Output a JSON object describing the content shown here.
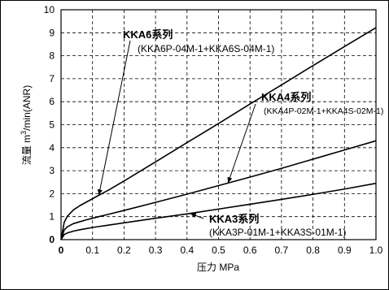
{
  "chart_data": {
    "type": "line",
    "title": "",
    "xlabel": "压力 MPa",
    "ylabel_prefix": "流量 m",
    "ylabel_sup": "3",
    "ylabel_suffix": "/min(ANR)",
    "xlim": [
      0,
      1.0
    ],
    "ylim": [
      0,
      10
    ],
    "grid": true,
    "x_ticks": [
      "0",
      "0.1",
      "0.2",
      "0.3",
      "0.4",
      "0.5",
      "0.6",
      "0.7",
      "0.8",
      "0.9",
      "1.0"
    ],
    "y_ticks": [
      "0",
      "1",
      "2",
      "3",
      "4",
      "5",
      "6",
      "7",
      "8",
      "9",
      "10"
    ],
    "series": [
      {
        "name": "KKA6",
        "x": [
          0,
          0.01,
          0.02,
          0.04,
          0.06,
          0.08,
          0.1,
          0.12,
          0.15,
          0.2,
          0.3,
          0.4,
          0.5,
          0.6,
          0.7,
          0.8,
          0.9,
          1.0
        ],
        "y": [
          0,
          0.75,
          1.02,
          1.3,
          1.48,
          1.63,
          1.78,
          1.93,
          2.15,
          2.55,
          3.38,
          4.22,
          5.05,
          5.9,
          6.73,
          7.57,
          8.4,
          9.22
        ]
      },
      {
        "name": "KKA4",
        "x": [
          0,
          0.01,
          0.02,
          0.04,
          0.06,
          0.08,
          0.1,
          0.12,
          0.15,
          0.2,
          0.3,
          0.4,
          0.5,
          0.6,
          0.7,
          0.8,
          0.9,
          1.0
        ],
        "y": [
          0,
          0.42,
          0.56,
          0.7,
          0.78,
          0.86,
          0.93,
          1.0,
          1.1,
          1.27,
          1.62,
          1.98,
          2.35,
          2.72,
          3.1,
          3.5,
          3.9,
          4.3
        ]
      },
      {
        "name": "KKA3",
        "x": [
          0,
          0.01,
          0.02,
          0.04,
          0.06,
          0.08,
          0.1,
          0.12,
          0.15,
          0.2,
          0.3,
          0.4,
          0.5,
          0.6,
          0.7,
          0.8,
          0.9,
          1.0
        ],
        "y": [
          0,
          0.22,
          0.29,
          0.37,
          0.43,
          0.48,
          0.53,
          0.57,
          0.63,
          0.73,
          0.93,
          1.12,
          1.33,
          1.54,
          1.75,
          1.97,
          2.2,
          2.45
        ]
      }
    ],
    "annotations": [
      {
        "series": "KKA6",
        "title": "KKA6系列",
        "sub": "(KKA6P-04M-1+KKA6S-04M-1)",
        "point": [
          0.12,
          1.93
        ]
      },
      {
        "series": "KKA4",
        "title": "KKA4系列",
        "sub": "(KKA4P-02M-1+KKA4S-02M-1)",
        "point": [
          0.53,
          2.46
        ]
      },
      {
        "series": "KKA3",
        "title": "KKA3系列",
        "sub": "(KKA3P-01M-1+KKA3S-01M-1)",
        "point": [
          0.41,
          1.14
        ]
      }
    ]
  }
}
